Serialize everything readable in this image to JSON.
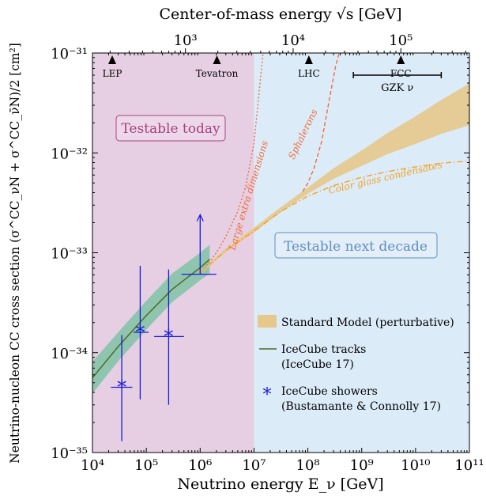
{
  "chart_data": {
    "type": "line",
    "top_axis_label": "Center-of-mass energy √s [GeV]",
    "xlabel": "Neutrino energy E_ν [GeV]",
    "ylabel": "Neutrino-nucleon CC cross section (σ^CC_νN + σ^CC_ν̄N)/2  [cm²]",
    "x_scale": "log",
    "y_scale": "log",
    "xlim": [
      10000,
      100000000000
    ],
    "ylim": [
      1e-35,
      1e-31
    ],
    "x_ticks": [
      {
        "value": 10000,
        "label": "10⁴"
      },
      {
        "value": 100000,
        "label": "10⁵"
      },
      {
        "value": 1000000,
        "label": "10⁶"
      },
      {
        "value": 10000000,
        "label": "10⁷"
      },
      {
        "value": 100000000,
        "label": "10⁸"
      },
      {
        "value": 1000000000,
        "label": "10⁹"
      },
      {
        "value": 10000000000,
        "label": "10¹⁰"
      },
      {
        "value": 100000000000,
        "label": "10¹¹"
      }
    ],
    "y_ticks": [
      {
        "value": 1e-35,
        "label": "10⁻³⁵"
      },
      {
        "value": 1e-34,
        "label": "10⁻³⁴"
      },
      {
        "value": 1e-33,
        "label": "10⁻³³"
      },
      {
        "value": 1e-32,
        "label": "10⁻³²"
      },
      {
        "value": 1e-31,
        "label": "10⁻³¹"
      }
    ],
    "top_ticks": [
      {
        "value": 1000,
        "label": "10³"
      },
      {
        "value": 10000,
        "label": "10⁴"
      },
      {
        "value": 100000,
        "label": "10⁵"
      }
    ],
    "regions": [
      {
        "label": "Testable today",
        "x_range": [
          10000,
          10000000
        ],
        "color": "#e6cfe2",
        "label_color": "#a8407e"
      },
      {
        "label": "Testable next decade",
        "x_range": [
          10000000,
          100000000000
        ],
        "color": "#dcebf8",
        "label_color": "#5f8fc2"
      }
    ],
    "accelerators": [
      {
        "label": "LEP",
        "sqrt_s": 209
      },
      {
        "label": "Tevatron",
        "sqrt_s": 1960
      },
      {
        "label": "LHC",
        "sqrt_s": 14000
      },
      {
        "label": "FCC",
        "sqrt_s": 100000
      }
    ],
    "gzk": {
      "label": "GZK ν",
      "x_range": [
        700000000,
        30000000000
      ],
      "y": 6e-32
    },
    "sm_band": {
      "name": "Standard Model (perturbative)",
      "color": "#e6c88a",
      "x": [
        1000000,
        3000000,
        10000000,
        30000000,
        100000000,
        300000000,
        1000000000,
        3000000000,
        10000000000,
        30000000000,
        100000000000
      ],
      "lower": [
        6.1e-34,
        1.02e-33,
        1.6e-33,
        2.5e-33,
        3.9e-33,
        5.5e-33,
        7.4e-33,
        9.7e-33,
        1.23e-32,
        1.55e-32,
        1.9e-32
      ],
      "upper": [
        6.5e-34,
        1.1e-33,
        1.78e-33,
        2.8e-33,
        4.5e-33,
        7e-33,
        1.06e-32,
        1.58e-32,
        2.32e-32,
        3.4e-32,
        4.95e-32
      ]
    },
    "icecube_tracks": {
      "name": "IceCube tracks",
      "ref": "(IceCube 17)",
      "color": "#4a6b22",
      "band_color": "#7fc3a5",
      "x": [
        10000,
        30000,
        100000,
        300000,
        1000000,
        1500000
      ],
      "y": [
        5.6e-35,
        1.15e-34,
        2.35e-34,
        4.3e-34,
        7.1e-34,
        8.6e-34
      ],
      "band_lower": [
        3.9e-35,
        8.2e-35,
        1.7e-34,
        3.2e-34,
        5.3e-34,
        6.2e-34
      ],
      "band_upper": [
        8.1e-35,
        1.6e-34,
        3.3e-34,
        6.2e-34,
        1e-33,
        1.2e-33
      ]
    },
    "icecube_showers": {
      "name": "IceCube showers",
      "ref": "(Bustamante & Connolly 17)",
      "color": "#1a1adb",
      "points": [
        {
          "x": 35000,
          "y": 4.5e-35,
          "x_err": [
            22000,
            55000
          ],
          "y_err": [
            1.3e-35,
            1.5e-34
          ]
        },
        {
          "x": 77000,
          "y": 1.6e-34,
          "x_err": [
            58000,
            110000
          ],
          "y_err": [
            3.4e-35,
            7.4e-34
          ]
        },
        {
          "x": 260000,
          "y": 1.45e-34,
          "x_err": [
            140000,
            500000
          ],
          "y_err": [
            3e-35,
            6.8e-34
          ]
        }
      ],
      "lower_limit": {
        "x": 1000000,
        "y": 6.1e-34,
        "x_err": [
          450000,
          2000000
        ],
        "y_arrow_to": 2.4e-33
      }
    },
    "bsm_curves": [
      {
        "label": "Large extra dimensions",
        "style": "dotted",
        "color": "#f26b3a",
        "x": [
          1000000,
          2000000,
          3000000,
          5000000,
          7000000,
          10000000,
          15000000
        ],
        "y": [
          6.1e-34,
          1e-33,
          1.45e-33,
          2.6e-33,
          4.6e-33,
          1.25e-32,
          1.1e-31
        ]
      },
      {
        "label": "Sphalerons",
        "style": "dashed",
        "color": "#f26b3a",
        "x": [
          80000000,
          100000000,
          130000000,
          180000000,
          260000000,
          330000000,
          400000000
        ],
        "y": [
          4.1e-33,
          5e-33,
          7e-33,
          1.3e-32,
          3.8e-32,
          7.5e-32,
          1.1e-31
        ]
      },
      {
        "label": "Color glass condensates",
        "style": "dashdot",
        "color": "#f2a424",
        "x": [
          1000000,
          3000000,
          10000000,
          30000000,
          100000000,
          300000000,
          1000000000,
          3000000000,
          10000000000,
          30000000000,
          100000000000
        ],
        "y": [
          6.3e-34,
          1.05e-33,
          1.65e-33,
          2.55e-33,
          3.7e-33,
          4.7e-33,
          5.7e-33,
          6.5e-33,
          7.25e-33,
          7.9e-33,
          8.3e-33
        ]
      }
    ],
    "legend": {
      "placement": "bottom-right"
    }
  }
}
